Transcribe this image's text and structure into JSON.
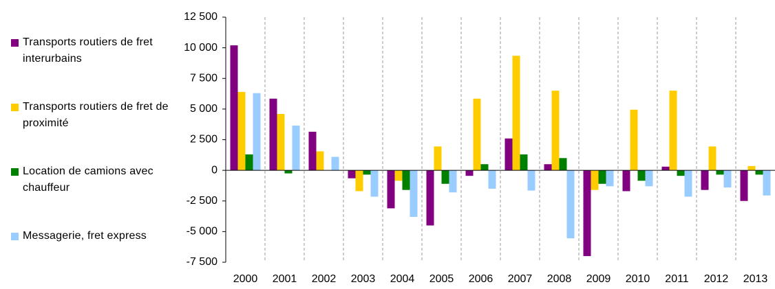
{
  "chart_data": {
    "type": "bar",
    "categories": [
      "2000",
      "2001",
      "2002",
      "2003",
      "2004",
      "2005",
      "2006",
      "2007",
      "2008",
      "2009",
      "2010",
      "2011",
      "2012",
      "2013"
    ],
    "series": [
      {
        "name": "Transports routiers de fret interurbains",
        "color": "#800080",
        "values": [
          10200,
          5850,
          3150,
          -650,
          -3100,
          -4500,
          -450,
          2600,
          500,
          -7000,
          -1700,
          300,
          -1600,
          -2500
        ]
      },
      {
        "name": "Transports routiers de fret de proximité",
        "color": "#ffcc00",
        "values": [
          6400,
          4600,
          1550,
          -1700,
          -850,
          1950,
          5850,
          9350,
          6500,
          -1600,
          4950,
          6500,
          1950,
          350
        ]
      },
      {
        "name": "Location de camions avec chauffeur",
        "color": "#008000",
        "values": [
          1300,
          -250,
          0,
          -350,
          -1600,
          -1100,
          500,
          1300,
          1000,
          -1100,
          -850,
          -450,
          -350,
          -350
        ]
      },
      {
        "name": "Messagerie, fret express",
        "color": "#99ccff",
        "values": [
          6300,
          3650,
          1100,
          -2150,
          -3800,
          -1800,
          -1500,
          -1650,
          -5550,
          -1300,
          -1300,
          -2150,
          -1400,
          -2050
        ]
      }
    ],
    "ylim": [
      -7500,
      12500
    ],
    "yticks": [
      {
        "value": -7500,
        "label": "-7 500"
      },
      {
        "value": -5000,
        "label": "-5 000"
      },
      {
        "value": -2500,
        "label": "-2 500"
      },
      0,
      {
        "value": 2500,
        "label": "2 500"
      },
      {
        "value": 5000,
        "label": "5 000"
      },
      {
        "value": 7500,
        "label": "7 500"
      },
      {
        "value": 10000,
        "label": "10 000"
      },
      {
        "value": 12500,
        "label": "12 500"
      }
    ],
    "legend": "left"
  }
}
